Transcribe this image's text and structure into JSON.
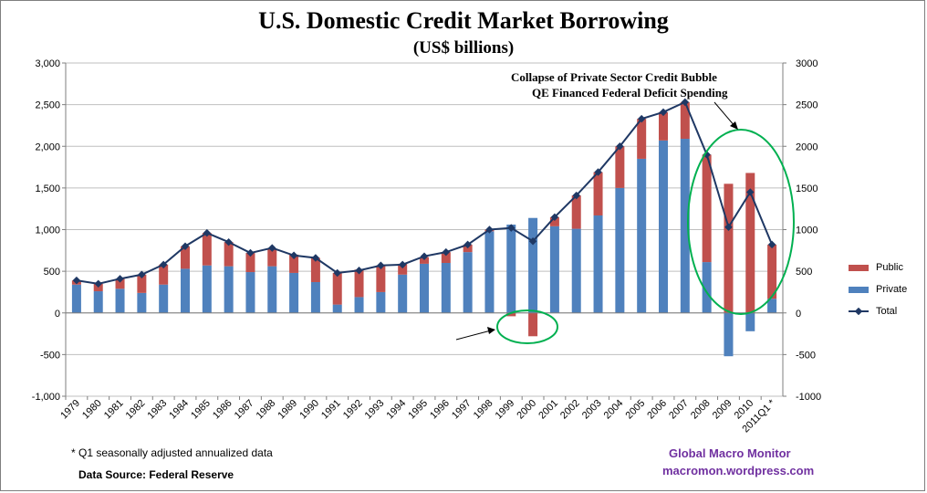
{
  "chart_data": {
    "type": "bar",
    "title": "U.S. Domestic Credit Market Borrowing",
    "subtitle": "(US$ billions)",
    "categories": [
      "1979",
      "1980",
      "1981",
      "1982",
      "1983",
      "1984",
      "1985",
      "1986",
      "1987",
      "1988",
      "1989",
      "1990",
      "1991",
      "1992",
      "1993",
      "1994",
      "1995",
      "1996",
      "1997",
      "1998",
      "1999",
      "2000",
      "2001",
      "2002",
      "2003",
      "2004",
      "2005",
      "2006",
      "2007",
      "2008",
      "2009",
      "2010",
      "2011Q1 *"
    ],
    "series": [
      {
        "name": "Private",
        "type": "stacked-bar",
        "color": "#4f81bd",
        "values": [
          340,
          260,
          290,
          240,
          340,
          530,
          570,
          560,
          490,
          560,
          480,
          370,
          100,
          190,
          250,
          460,
          590,
          600,
          730,
          980,
          1060,
          1140,
          1040,
          1010,
          1170,
          1500,
          1850,
          2070,
          2090,
          610,
          -520,
          -220,
          170
        ]
      },
      {
        "name": "Public",
        "type": "stacked-bar",
        "color": "#c0504d",
        "values": [
          50,
          90,
          120,
          220,
          240,
          270,
          390,
          290,
          230,
          210,
          220,
          290,
          380,
          330,
          320,
          130,
          80,
          130,
          90,
          20,
          -40,
          -280,
          110,
          400,
          520,
          500,
          480,
          340,
          440,
          1290,
          1550,
          1680,
          650
        ]
      },
      {
        "name": "Total",
        "type": "line",
        "color": "#1f3864",
        "values": [
          390,
          350,
          410,
          460,
          580,
          800,
          960,
          850,
          720,
          780,
          690,
          660,
          480,
          510,
          570,
          580,
          680,
          730,
          820,
          1000,
          1020,
          860,
          1150,
          1410,
          1690,
          2000,
          2330,
          2410,
          2530,
          1900,
          1030,
          1450,
          820
        ]
      }
    ],
    "ylim": [
      -1000,
      3000
    ],
    "yticks_left": [
      "3,000",
      "2,500",
      "2,000",
      "1,500",
      "1,000",
      "500",
      "0",
      "-500",
      "-1,000"
    ],
    "yticks_right": [
      "3000",
      "2500",
      "2000",
      "1500",
      "1000",
      "500",
      "0",
      "-500",
      "-1000"
    ],
    "ytick_values": [
      3000,
      2500,
      2000,
      1500,
      1000,
      500,
      0,
      -500,
      -1000
    ],
    "grid": true,
    "legend": "right",
    "annotations": [
      "Collapse of  Private Sector Credit Bubble",
      "QE Financed Federal Deficit Spending"
    ]
  },
  "legend": {
    "public": "Public",
    "private": "Private",
    "total": "Total"
  },
  "footer": {
    "footnote": "* Q1 seasonally adjusted annualized data",
    "source": "Data Source:  Federal Reserve",
    "brand_name": "Global Macro Monitor",
    "brand_url": "macromon.wordpress.com"
  },
  "colors": {
    "private": "#4f81bd",
    "public": "#c0504d",
    "total": "#1f3864",
    "circle": "#00b050",
    "brand": "#7030a0"
  }
}
